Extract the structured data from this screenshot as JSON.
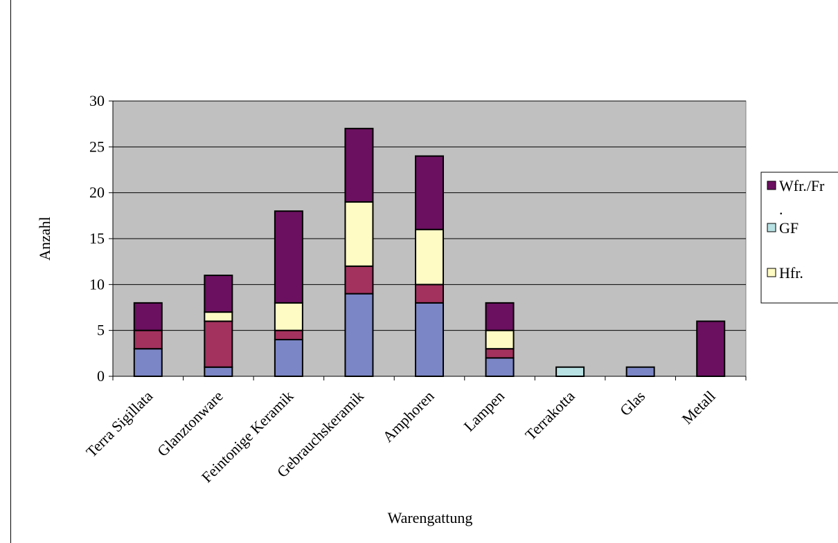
{
  "chart_data": {
    "type": "bar",
    "stacked": true,
    "categories": [
      "Terra Sigillata",
      "Glanztonware",
      "Feintonige Keramik",
      "Gebrauchskeramik",
      "Amphoren",
      "Lampen",
      "Terrakotta",
      "Glas",
      "Metall"
    ],
    "series": [
      {
        "name": "",
        "color": "#7b86c6",
        "values": [
          3,
          1,
          4,
          9,
          8,
          2,
          0,
          1,
          0
        ]
      },
      {
        "name": "",
        "color": "#a3325e",
        "values": [
          2,
          5,
          1,
          3,
          2,
          1,
          0,
          0,
          0
        ]
      },
      {
        "name": "Hfr.",
        "color": "#fffbc4",
        "values": [
          0,
          1,
          3,
          7,
          6,
          2,
          0,
          0,
          0
        ]
      },
      {
        "name": "GF",
        "color": "#b7e1e3",
        "values": [
          0,
          0,
          0,
          0,
          0,
          0,
          1,
          0,
          0
        ]
      },
      {
        "name": "Wfr./Fr.",
        "color": "#6b1060",
        "values": [
          3,
          4,
          10,
          8,
          8,
          3,
          0,
          0,
          6
        ]
      }
    ],
    "xlabel": "Warengattung",
    "ylabel": "Anzahl",
    "ylim": [
      0,
      30
    ],
    "yticks": [
      "0",
      "5",
      "10",
      "15",
      "20",
      "25",
      "30"
    ],
    "grid": true,
    "legend_position": "right",
    "legend_entries": [
      {
        "label": "Wfr./Fr",
        "continuation": ".",
        "color": "#6b1060"
      },
      {
        "label": "GF",
        "color": "#b7e1e3"
      },
      {
        "label": "Hfr.",
        "color": "#fffbc4"
      }
    ],
    "colors": {
      "plot_background": "#c0c0c0",
      "gridline": "#000000"
    }
  }
}
